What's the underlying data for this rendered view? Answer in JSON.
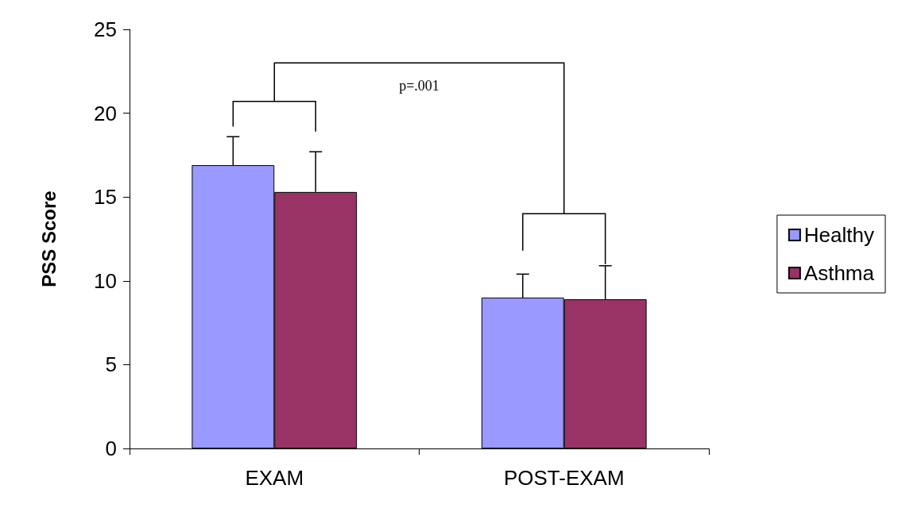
{
  "chart_data": {
    "type": "bar",
    "ylabel": "PSS Score",
    "categories": [
      "EXAM",
      "POST-EXAM"
    ],
    "series": [
      {
        "name": "Healthy",
        "color": "#9999ff",
        "values": [
          16.9,
          9.0
        ],
        "errors": [
          1.7,
          1.4
        ]
      },
      {
        "name": "Asthma",
        "color": "#993366",
        "values": [
          15.3,
          8.9
        ],
        "errors": [
          2.4,
          2.0
        ]
      }
    ],
    "ylim": [
      0,
      25
    ],
    "yticks": [
      0,
      5,
      10,
      15,
      20,
      25
    ],
    "grid": false,
    "legend": "right",
    "annotations": [
      "p=.001"
    ]
  }
}
